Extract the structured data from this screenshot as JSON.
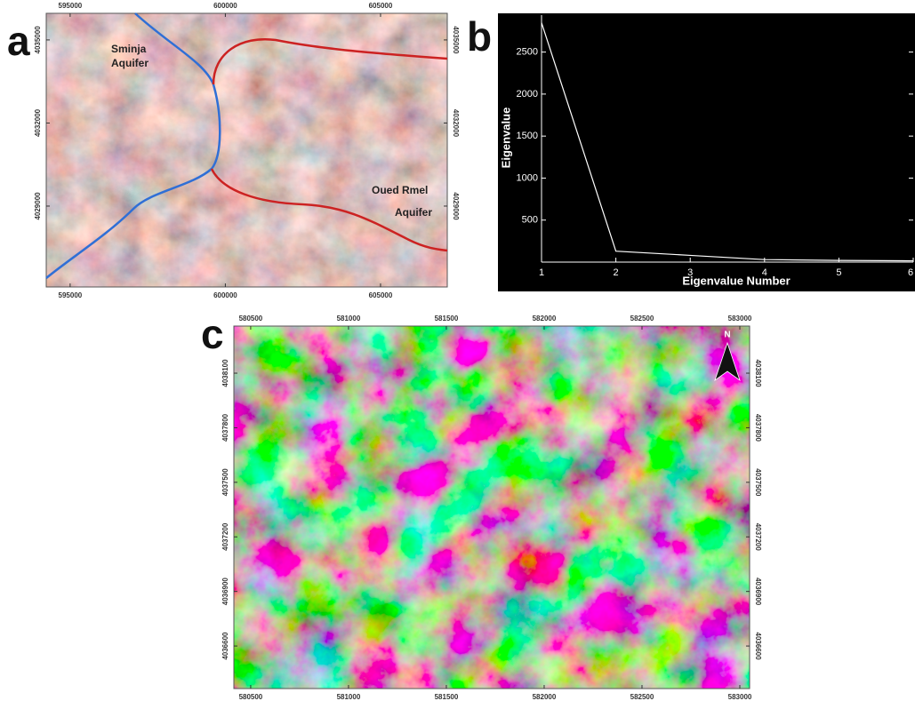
{
  "panel_a": {
    "label": "a",
    "xlim": [
      594230,
      607150
    ],
    "ylim": [
      4026080,
      4035960
    ],
    "xticks": [
      595000,
      600000,
      605000
    ],
    "yticks": [
      4035000,
      4032000,
      4029000
    ],
    "annotations": [
      {
        "lines": [
          "Sminja",
          "Aquifer"
        ]
      },
      {
        "lines": [
          "Oued Rmel",
          "Aquifer"
        ]
      }
    ]
  },
  "chart_data": {
    "type": "line",
    "label": "b",
    "x_label": "Eigenvalue Number",
    "y_label": "Eigenvalue",
    "x": [
      1,
      2,
      3,
      4,
      5,
      6
    ],
    "values": [
      2850,
      130,
      80,
      30,
      20,
      15
    ],
    "color": "#ffffff",
    "xlim": [
      1,
      6
    ],
    "ylim": [
      0,
      2940
    ],
    "xticks": [
      1,
      2,
      3,
      4,
      5,
      6
    ],
    "yticks": [
      500,
      1000,
      1500,
      2000,
      2500
    ]
  },
  "panel_c": {
    "label": "c",
    "north": "N",
    "xlim": [
      580414,
      583050
    ],
    "ylim": [
      4036366,
      4038359
    ],
    "xticks": [
      580500,
      581000,
      581500,
      582000,
      582500,
      583000
    ],
    "yticks": [
      4038100,
      4037800,
      4037500,
      4037200,
      4036900,
      4036600
    ]
  }
}
